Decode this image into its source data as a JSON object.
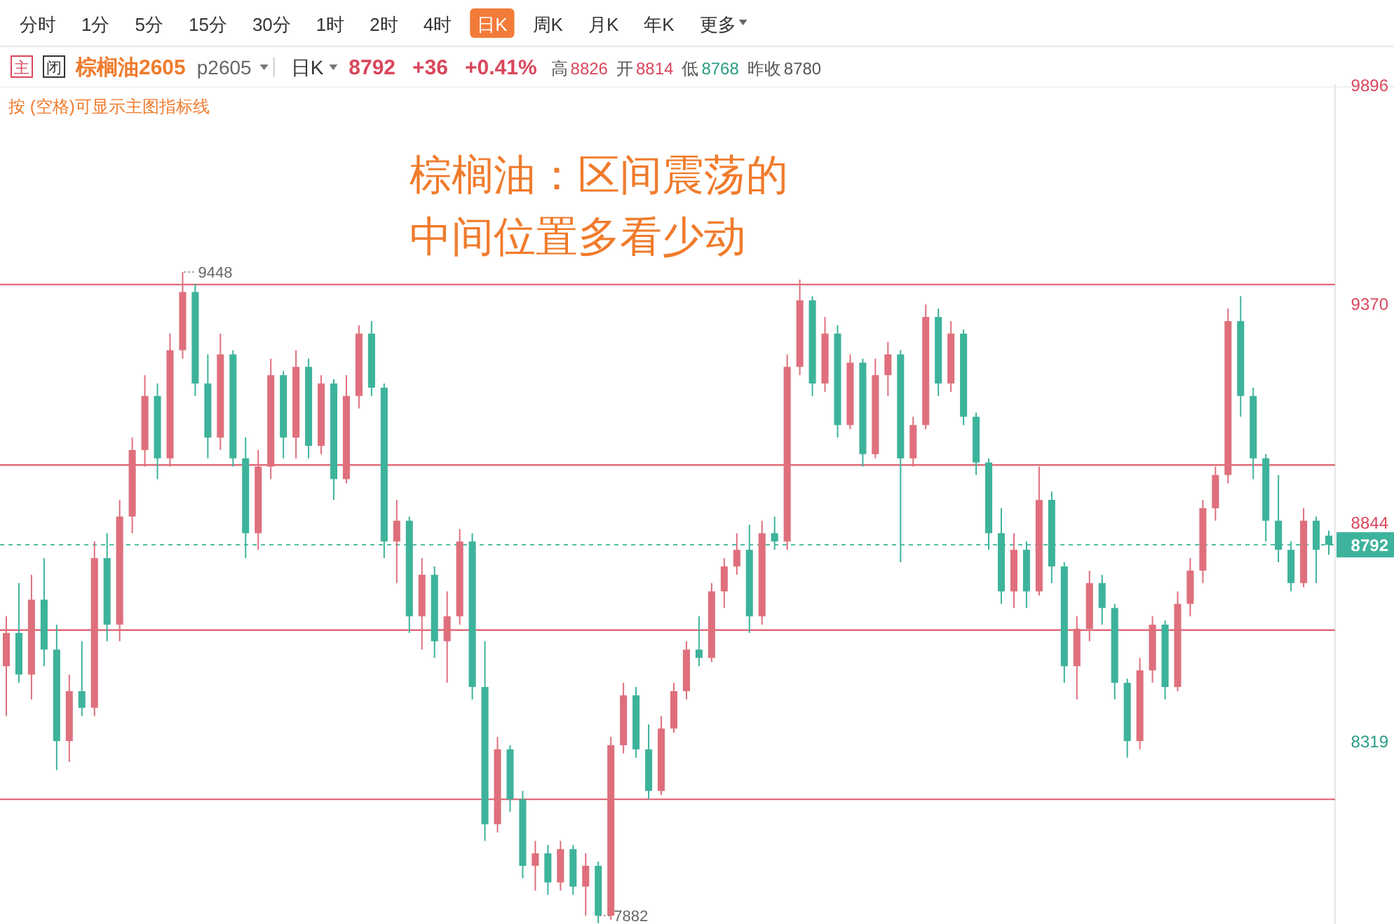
{
  "chart_data": {
    "type": "candlestick",
    "title": "棕榈油：区间震荡的中间位置多看少动",
    "categories": [
      null,
      null,
      null,
      null,
      null,
      null,
      null,
      null,
      null,
      null,
      null,
      null,
      null,
      null,
      null,
      null,
      null,
      null,
      null,
      null,
      null,
      null,
      null,
      null,
      null,
      null,
      null,
      null,
      null,
      null,
      null,
      null,
      null,
      null,
      null,
      null,
      null,
      null,
      null,
      null,
      null,
      null,
      null,
      null,
      null,
      null,
      null,
      null,
      null,
      null,
      null,
      null,
      null,
      null,
      null,
      null,
      null,
      null,
      null,
      null,
      null,
      null,
      null,
      null,
      null,
      null,
      null,
      null,
      null,
      null,
      null,
      null,
      null,
      null,
      null,
      null,
      null,
      null,
      null,
      null,
      null,
      null,
      null,
      null,
      null,
      null,
      null,
      null,
      null,
      null,
      null,
      null,
      null,
      null,
      null,
      null,
      null,
      null,
      null,
      null,
      null,
      null,
      null,
      null,
      null,
      null
    ],
    "ohlc": [
      [
        8500,
        8620,
        8380,
        8580
      ],
      [
        8580,
        8700,
        8460,
        8480
      ],
      [
        8480,
        8720,
        8420,
        8660
      ],
      [
        8660,
        8760,
        8500,
        8540
      ],
      [
        8540,
        8600,
        8250,
        8320
      ],
      [
        8320,
        8480,
        8270,
        8440
      ],
      [
        8440,
        8560,
        8380,
        8400
      ],
      [
        8400,
        8800,
        8380,
        8760
      ],
      [
        8760,
        8820,
        8560,
        8600
      ],
      [
        8600,
        8900,
        8560,
        8860
      ],
      [
        8860,
        9050,
        8820,
        9020
      ],
      [
        9020,
        9200,
        8980,
        9150
      ],
      [
        9150,
        9180,
        8950,
        9000
      ],
      [
        9000,
        9300,
        8980,
        9260
      ],
      [
        9260,
        9448,
        9240,
        9400
      ],
      [
        9400,
        9420,
        9150,
        9180
      ],
      [
        9180,
        9250,
        9000,
        9050
      ],
      [
        9050,
        9300,
        9020,
        9250
      ],
      [
        9250,
        9260,
        8980,
        9000
      ],
      [
        9000,
        9050,
        8760,
        8820
      ],
      [
        8820,
        9020,
        8780,
        8980
      ],
      [
        8980,
        9240,
        8950,
        9200
      ],
      [
        9200,
        9210,
        9000,
        9050
      ],
      [
        9050,
        9260,
        9000,
        9220
      ],
      [
        9220,
        9240,
        9000,
        9030
      ],
      [
        9030,
        9200,
        9010,
        9180
      ],
      [
        9180,
        9190,
        8900,
        8950
      ],
      [
        8950,
        9200,
        8940,
        9150
      ],
      [
        9150,
        9320,
        9120,
        9300
      ],
      [
        9300,
        9330,
        9150,
        9170
      ],
      [
        9170,
        9180,
        8760,
        8800
      ],
      [
        8800,
        8900,
        8700,
        8850
      ],
      [
        8850,
        8860,
        8580,
        8620
      ],
      [
        8620,
        8760,
        8540,
        8720
      ],
      [
        8720,
        8740,
        8520,
        8560
      ],
      [
        8560,
        8680,
        8460,
        8620
      ],
      [
        8620,
        8830,
        8600,
        8800
      ],
      [
        8800,
        8820,
        8420,
        8450
      ],
      [
        8450,
        8560,
        8080,
        8120
      ],
      [
        8120,
        8330,
        8100,
        8300
      ],
      [
        8300,
        8310,
        8150,
        8180
      ],
      [
        8180,
        8200,
        7990,
        8020
      ],
      [
        8020,
        8080,
        7960,
        8050
      ],
      [
        8050,
        8070,
        7950,
        7980
      ],
      [
        7980,
        8080,
        7960,
        8060
      ],
      [
        8060,
        8070,
        7950,
        7970
      ],
      [
        7970,
        8050,
        7900,
        8020
      ],
      [
        8020,
        8030,
        7882,
        7900
      ],
      [
        7900,
        8330,
        7890,
        8310
      ],
      [
        8310,
        8460,
        8290,
        8430
      ],
      [
        8430,
        8450,
        8280,
        8300
      ],
      [
        8300,
        8360,
        8180,
        8200
      ],
      [
        8200,
        8380,
        8190,
        8350
      ],
      [
        8350,
        8460,
        8340,
        8440
      ],
      [
        8440,
        8560,
        8420,
        8540
      ],
      [
        8540,
        8620,
        8500,
        8520
      ],
      [
        8520,
        8700,
        8510,
        8680
      ],
      [
        8680,
        8760,
        8640,
        8740
      ],
      [
        8740,
        8820,
        8720,
        8780
      ],
      [
        8780,
        8840,
        8580,
        8620
      ],
      [
        8620,
        8850,
        8600,
        8820
      ],
      [
        8820,
        8860,
        8780,
        8800
      ],
      [
        8800,
        9250,
        8780,
        9220
      ],
      [
        9220,
        9430,
        9200,
        9380
      ],
      [
        9380,
        9390,
        9150,
        9180
      ],
      [
        9180,
        9340,
        9160,
        9300
      ],
      [
        9300,
        9320,
        9050,
        9080
      ],
      [
        9080,
        9250,
        9070,
        9230
      ],
      [
        9230,
        9240,
        8980,
        9010
      ],
      [
        9010,
        9240,
        9000,
        9200
      ],
      [
        9200,
        9280,
        9150,
        9250
      ],
      [
        9250,
        9260,
        8750,
        9000
      ],
      [
        9000,
        9100,
        8980,
        9080
      ],
      [
        9080,
        9370,
        9070,
        9340
      ],
      [
        9340,
        9360,
        9150,
        9180
      ],
      [
        9180,
        9330,
        9160,
        9300
      ],
      [
        9300,
        9310,
        9080,
        9100
      ],
      [
        9100,
        9110,
        8960,
        8990
      ],
      [
        8990,
        9000,
        8780,
        8820
      ],
      [
        8820,
        8880,
        8650,
        8680
      ],
      [
        8680,
        8820,
        8640,
        8780
      ],
      [
        8780,
        8800,
        8640,
        8680
      ],
      [
        8680,
        8980,
        8670,
        8900
      ],
      [
        8900,
        8920,
        8700,
        8740
      ],
      [
        8740,
        8750,
        8460,
        8500
      ],
      [
        8500,
        8620,
        8420,
        8590
      ],
      [
        8590,
        8730,
        8560,
        8700
      ],
      [
        8700,
        8720,
        8600,
        8640
      ],
      [
        8640,
        8650,
        8420,
        8460
      ],
      [
        8460,
        8470,
        8280,
        8320
      ],
      [
        8320,
        8520,
        8300,
        8490
      ],
      [
        8490,
        8620,
        8460,
        8600
      ],
      [
        8600,
        8610,
        8420,
        8450
      ],
      [
        8450,
        8680,
        8440,
        8650
      ],
      [
        8650,
        8760,
        8620,
        8730
      ],
      [
        8730,
        8900,
        8700,
        8880
      ],
      [
        8880,
        8980,
        8850,
        8960
      ],
      [
        8960,
        9360,
        8940,
        9330
      ],
      [
        9330,
        9390,
        9100,
        9150
      ],
      [
        9150,
        9170,
        8950,
        9000
      ],
      [
        9000,
        9010,
        8800,
        8850
      ],
      [
        8850,
        8960,
        8750,
        8780
      ],
      [
        8780,
        8800,
        8680,
        8700
      ],
      [
        8700,
        8880,
        8690,
        8850
      ],
      [
        8850,
        8860,
        8700,
        8780
      ],
      [
        8814,
        8826,
        8768,
        8792
      ]
    ],
    "ylim": [
      7880,
      9900
    ],
    "yticks": [
      9896,
      9370,
      8844,
      8319
    ],
    "ref_lines": [
      {
        "axis": "y",
        "value": 9418,
        "color": "#e06b78"
      },
      {
        "axis": "y",
        "value": 8984,
        "color": "#e06b78"
      },
      {
        "axis": "y",
        "value": 8587,
        "color": "#e06b78"
      },
      {
        "axis": "y",
        "value": 8180,
        "color": "#e06b78"
      },
      {
        "axis": "y",
        "value": 8792,
        "label": "8792",
        "color": "#3db39b",
        "line_style": "dashed"
      }
    ],
    "annotations": [
      "分时",
      "1分",
      "5分",
      "15分",
      "30分",
      "1时",
      "2时",
      "4时",
      "日K",
      "周K",
      "月K",
      "年K",
      "更多",
      "主",
      "闭",
      "棕榈油2605",
      "p2605",
      "日K",
      "8792",
      "+36",
      "+0.41%",
      "高",
      "8826",
      "开",
      "8814",
      "低",
      "8768",
      "昨收",
      "8780",
      "按 (空格)可显示主图指标线",
      "9448",
      "7882"
    ]
  }
}
